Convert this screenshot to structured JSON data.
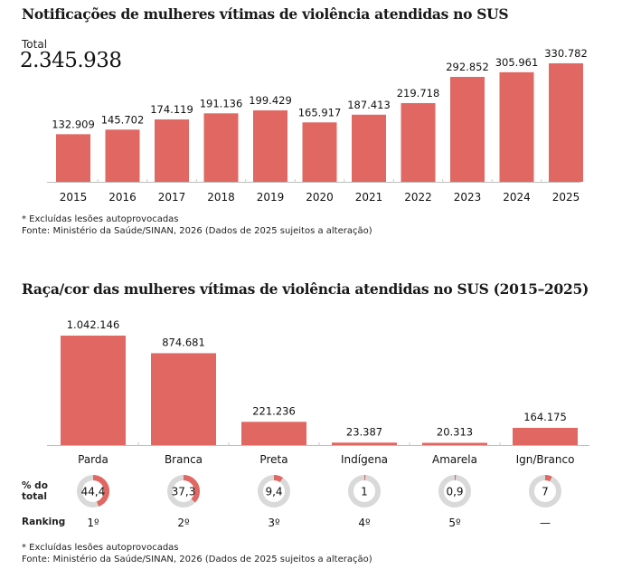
{
  "chart_data": [
    {
      "type": "bar",
      "title": "Notificações de mulheres vítimas de violência atendidas no SUS",
      "total_label": "Total",
      "total_value": "2.345.938",
      "categories": [
        "2015",
        "2016",
        "2017",
        "2018",
        "2019",
        "2020",
        "2021",
        "2022",
        "2023",
        "2024",
        "2025"
      ],
      "values": [
        132909,
        145702,
        174119,
        191136,
        199429,
        165917,
        187413,
        219718,
        292852,
        305961,
        330782
      ],
      "value_labels": [
        "132.909",
        "145.702",
        "174.119",
        "191.136",
        "199.429",
        "165.917",
        "187.413",
        "219.718",
        "292.852",
        "305.961",
        "330.782"
      ],
      "xlabel": "",
      "ylabel": "",
      "ylim": [
        0,
        330782
      ],
      "grid": false,
      "bar_color": "#e06762",
      "notes": [
        "* Excluídas lesões autoprovocadas",
        "Fonte: Ministério da Saúde/SINAN, 2026 (Dados de 2025 sujeitos a alteração)"
      ]
    },
    {
      "type": "bar",
      "title": "Raça/cor das mulheres vítimas de violência atendidas no SUS (2015–2025)",
      "categories": [
        "Parda",
        "Branca",
        "Preta",
        "Indígena",
        "Amarela",
        "Ign/Branco"
      ],
      "values": [
        1042146,
        874681,
        221236,
        23387,
        20313,
        164175
      ],
      "value_labels": [
        "1.042.146",
        "874.681",
        "221.236",
        "23.387",
        "20.313",
        "164.175"
      ],
      "percent_label": "% do total",
      "percent_label_lines": [
        "% do",
        "total"
      ],
      "percent_of_total": [
        44.4,
        37.3,
        9.4,
        1,
        0.9,
        7
      ],
      "percent_text": [
        "44,4",
        "37,3",
        "9,4",
        "1",
        "0,9",
        "7"
      ],
      "ranking_label": "Ranking",
      "ranking": [
        "1º",
        "2º",
        "3º",
        "4º",
        "5º",
        "—"
      ],
      "xlabel": "",
      "ylabel": "",
      "ylim": [
        0,
        1042146
      ],
      "grid": false,
      "bar_color": "#e06762",
      "donut_track_color": "#d9d9d9",
      "notes": [
        "* Excluídas lesões autoprovocadas",
        "Fonte: Ministério da Saúde/SINAN, 2026 (Dados de 2025 sujeitos a alteração)"
      ]
    }
  ]
}
